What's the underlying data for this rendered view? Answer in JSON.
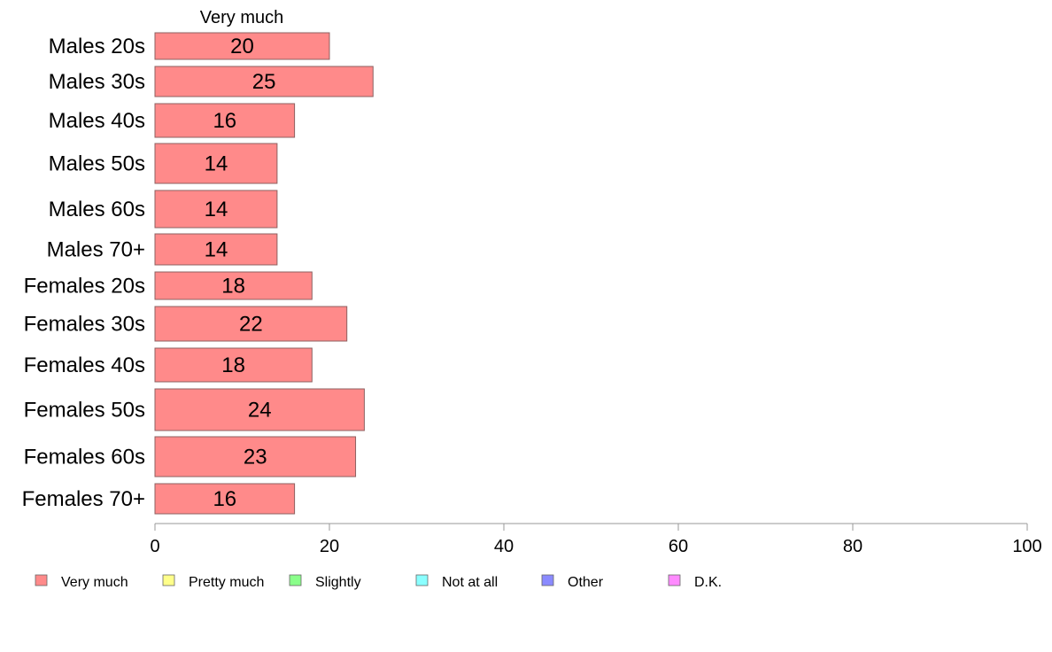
{
  "chart_data": {
    "type": "bar",
    "orientation": "horizontal",
    "stacked": true,
    "column_header": "Very much",
    "categories": [
      "Males 20s",
      "Males 30s",
      "Males 40s",
      "Males 50s",
      "Males 60s",
      "Males 70+",
      "Females 20s",
      "Females 30s",
      "Females 40s",
      "Females 50s",
      "Females 60s",
      "Females 70+"
    ],
    "series": [
      {
        "name": "Very much",
        "color": "#ff8a8a",
        "values": [
          20,
          25,
          16,
          14,
          14,
          14,
          18,
          22,
          18,
          24,
          23,
          16
        ]
      }
    ],
    "xlim": [
      0,
      100
    ],
    "xticks": [
      "0",
      "20",
      "40",
      "60",
      "80",
      "100"
    ],
    "grid": false,
    "legend_position": "bottom",
    "legend": [
      {
        "label": "Very much",
        "color": "#ff8a8a"
      },
      {
        "label": "Pretty much",
        "color": "#ffff8a"
      },
      {
        "label": "Slightly",
        "color": "#8aff8a"
      },
      {
        "label": "Not at all",
        "color": "#8affff"
      },
      {
        "label": "Other",
        "color": "#8a8aff"
      },
      {
        "label": "D.K.",
        "color": "#ff8aff"
      }
    ]
  }
}
